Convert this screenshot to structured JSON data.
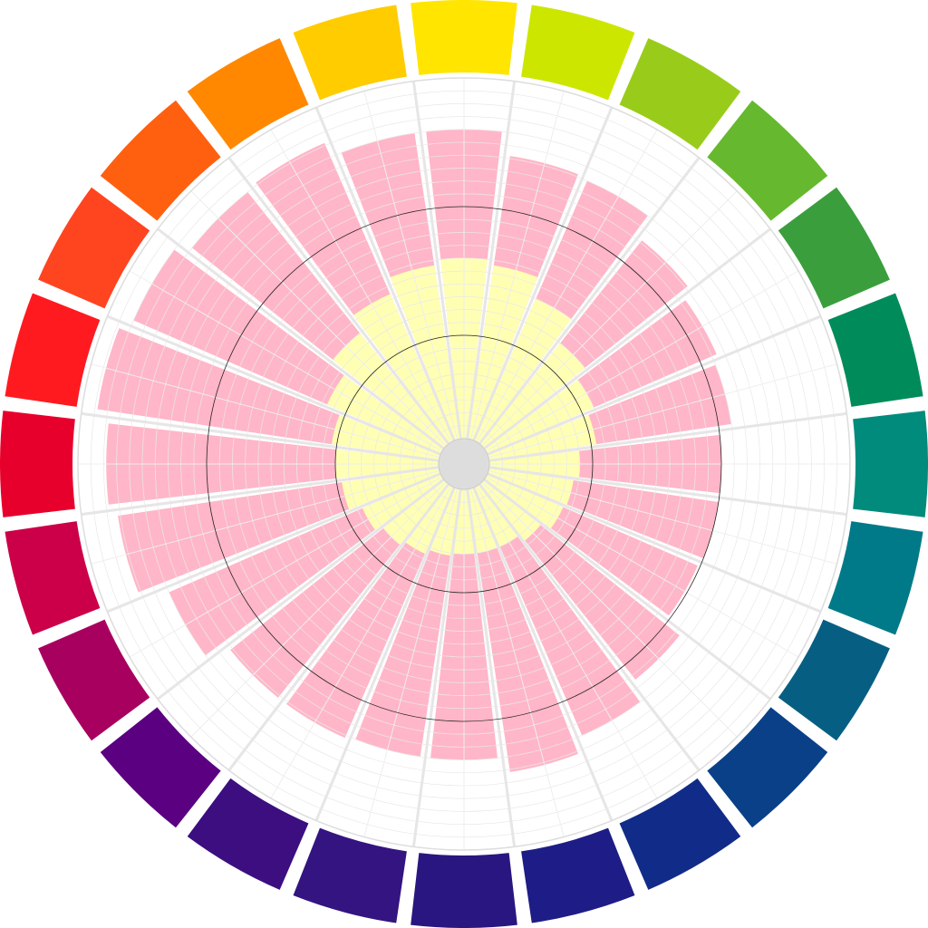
{
  "chart_data": {
    "type": "polar_bar",
    "categories": [
      null,
      null,
      null,
      null,
      null,
      null,
      null,
      null,
      null,
      null,
      null,
      null,
      null,
      null,
      null,
      null,
      null,
      null,
      null,
      null,
      null,
      null,
      null,
      null
    ],
    "ring_colors": [
      "#FFE500",
      "#CCE600",
      "#99CC1A",
      "#66B82E",
      "#3A9E3C",
      "#008C5A",
      "#008B7D",
      "#007A88",
      "#065F82",
      "#0A4088",
      "#112B88",
      "#1E1C86",
      "#2A1680",
      "#331480",
      "#3C0E80",
      "#5A0080",
      "#A8005F",
      "#CC0048",
      "#E8002C",
      "#FF1A20",
      "#FF4420",
      "#FF6010",
      "#FF8800",
      "#FFCC00"
    ],
    "series": [
      {
        "color": "#FFB6C8",
        "values": [
          13.0,
          12.1,
          12.0,
          11.1,
          10.7,
          10.5,
          10.0,
          10.0,
          9.9,
          10.7,
          11.5,
          12.1,
          11.5,
          11.5,
          11.6,
          11.6,
          12.5,
          13.6,
          13.9,
          14.4,
          14.0,
          13.5,
          13.6,
          13.0
        ]
      },
      {
        "color": "#FFFFB4",
        "values": [
          8.0,
          7.8,
          7.0,
          6.0,
          5.5,
          5.2,
          4.5,
          4.3,
          4.2,
          3.8,
          3.5,
          3.5,
          3.5,
          3.6,
          3.8,
          4.0,
          4.3,
          4.8,
          5.0,
          5.2,
          5.8,
          6.5,
          7.2,
          7.8
        ]
      }
    ],
    "rlim": [
      0,
      15
    ],
    "rticks": [
      5,
      10,
      15
    ],
    "grid": true
  }
}
